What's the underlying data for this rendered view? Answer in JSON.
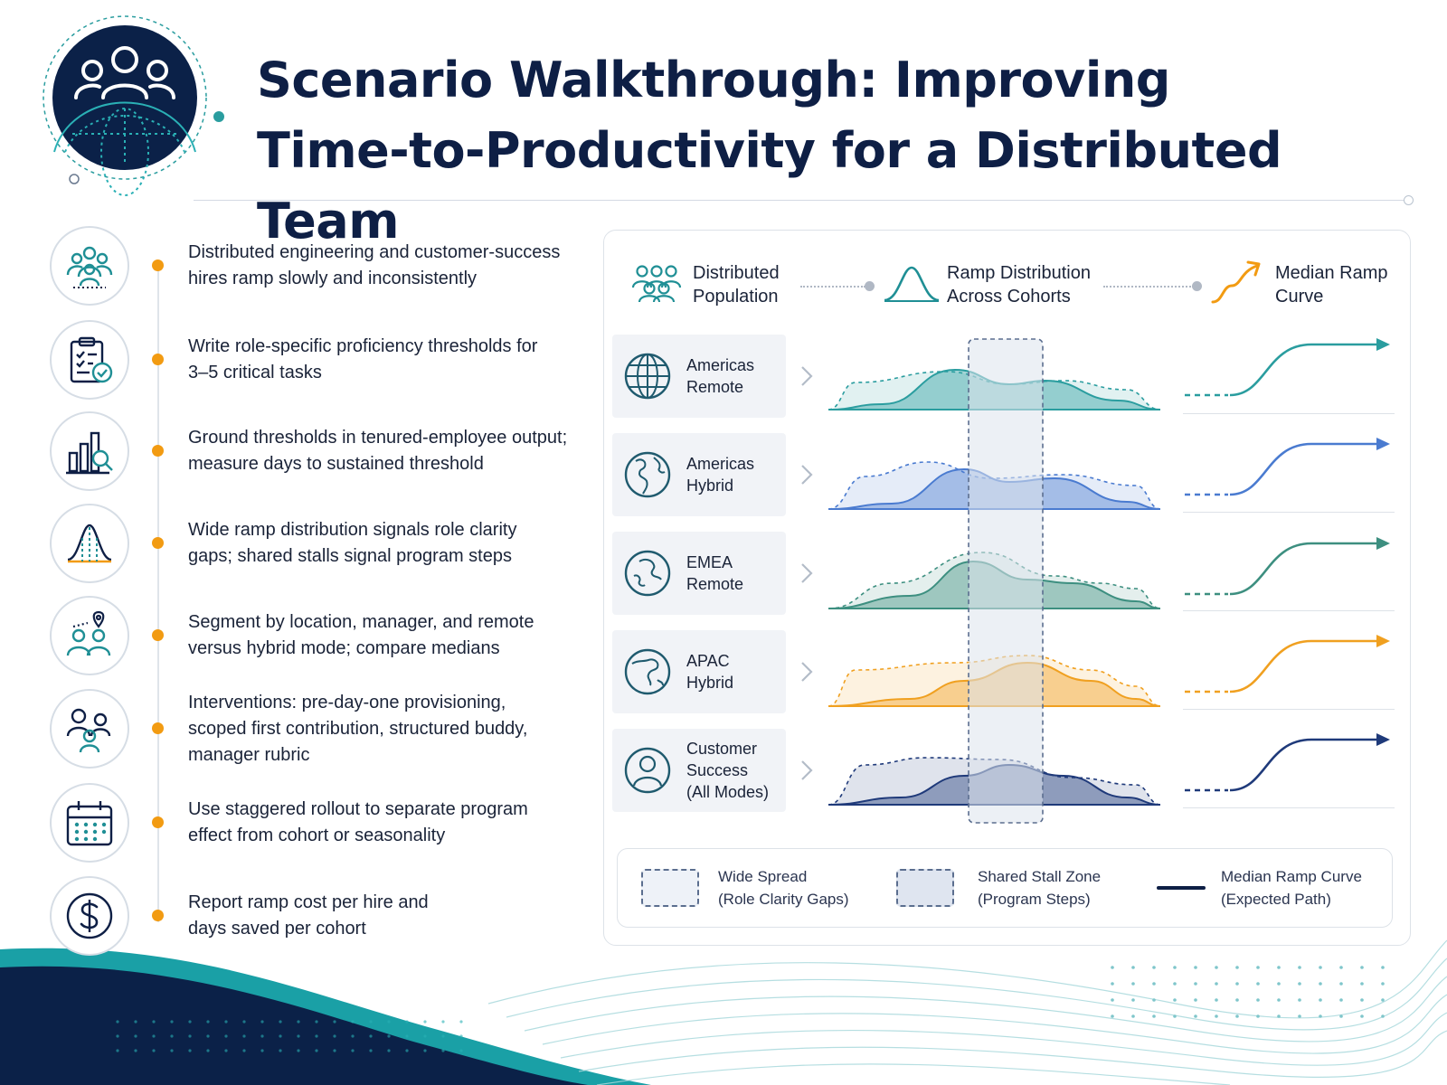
{
  "header": {
    "title_line1": "Scenario Walkthrough: Improving",
    "title_line2": "Time-to-Productivity for a Distributed Team",
    "logo_icon": "team-globe-icon"
  },
  "steps": [
    {
      "icon": "team-icon",
      "line1": "Distributed engineering and customer-success",
      "line2": "hires ramp slowly and inconsistently",
      "line3": ""
    },
    {
      "icon": "clipboard-check-icon",
      "line1": "Write role-specific proficiency thresholds for",
      "line2": "3–5 critical tasks",
      "line3": ""
    },
    {
      "icon": "bar-chart-search-icon",
      "line1": "Ground thresholds in tenured-employee output;",
      "line2": "measure days to sustained threshold",
      "line3": ""
    },
    {
      "icon": "bell-curve-icon",
      "line1": "Wide ramp distribution signals role clarity",
      "line2": "gaps; shared stalls signal program steps",
      "line3": ""
    },
    {
      "icon": "people-location-icon",
      "line1": "Segment by location, manager, and remote",
      "line2": "versus hybrid mode; compare medians",
      "line3": ""
    },
    {
      "icon": "buddy-group-icon",
      "line1": "Interventions: pre-day-one provisioning,",
      "line2": "scoped first contribution, structured buddy,",
      "line3": "manager rubric"
    },
    {
      "icon": "calendar-icon",
      "line1": "Use staggered rollout to separate program",
      "line2": "effect from cohort or seasonality",
      "line3": ""
    },
    {
      "icon": "dollar-icon",
      "line1": "Report ramp cost per hire and",
      "line2": "days saved per cohort",
      "line3": ""
    }
  ],
  "columns": {
    "population": {
      "line1": "Distributed",
      "line2": "Population",
      "icon": "people-icon"
    },
    "distribution": {
      "line1": "Ramp Distribution",
      "line2": "Across Cohorts",
      "icon": "bell-curve-icon"
    },
    "median": {
      "line1": "Median Ramp",
      "line2": "Curve",
      "icon": "trend-up-arrow-icon"
    }
  },
  "cohorts": [
    {
      "line1": "Americas",
      "line2": "Remote",
      "line3": "",
      "icon": "globe-grid-icon",
      "color": "#2a9d9f"
    },
    {
      "line1": "Americas",
      "line2": "Hybrid",
      "line3": "",
      "icon": "globe-americas-icon",
      "color": "#4a7bd0"
    },
    {
      "line1": "EMEA",
      "line2": "Remote",
      "line3": "",
      "icon": "globe-europe-icon",
      "color": "#3d8f80"
    },
    {
      "line1": "APAC",
      "line2": "Hybrid",
      "line3": "",
      "icon": "globe-asia-icon",
      "color": "#f0a020"
    },
    {
      "line1": "Customer",
      "line2": "Success",
      "line3": "(All Modes)",
      "icon": "person-icon",
      "color": "#1f3a7a"
    }
  ],
  "legend": {
    "wide_spread_1": "Wide Spread",
    "wide_spread_2": "(Role Clarity Gaps)",
    "stall_zone_1": "Shared Stall Zone",
    "stall_zone_2": "(Program Steps)",
    "median_1": "Median Ramp Curve",
    "median_2": "(Expected Path)"
  },
  "colors": {
    "navy": "#0e1f45",
    "accent_orange": "#f29b12",
    "teal": "#2a9d9f"
  }
}
